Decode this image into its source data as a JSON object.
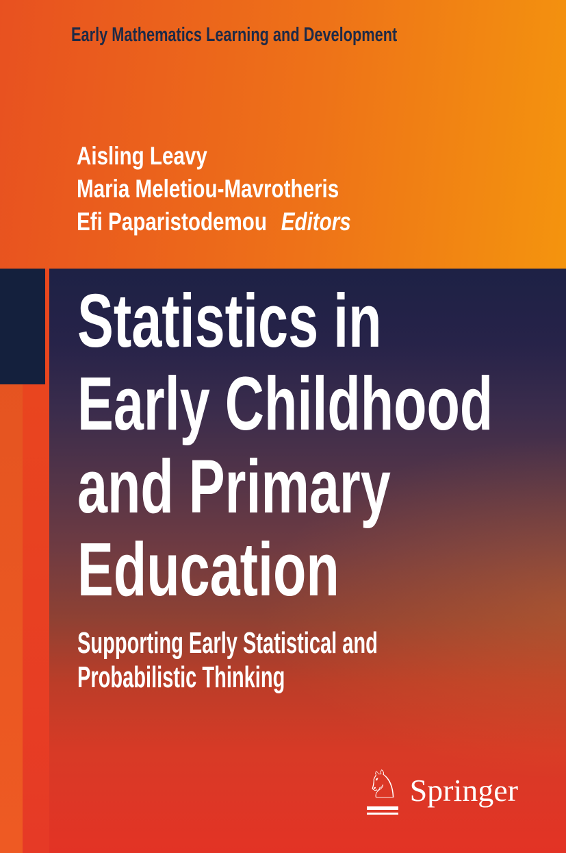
{
  "series": {
    "title": "Early Mathematics Learning and Development"
  },
  "editors": {
    "names": [
      "Aisling Leavy",
      "Maria Meletiou-Mavrotheris",
      "Efi Paparistodemou"
    ],
    "label": "Editors"
  },
  "book": {
    "title_lines": [
      "Statistics in",
      "Early Childhood",
      "and Primary",
      "Education"
    ],
    "subtitle_lines": [
      "Supporting Early Statistical and",
      "Probabilistic Thinking"
    ]
  },
  "publisher": {
    "name": "Springer",
    "logo_icon": "chess-knight",
    "knight_glyph": "♘"
  },
  "colors": {
    "bg_orange_left": "#e85120",
    "bg_orange_right": "#f4940e",
    "left_strip_orange": "#ee5a23",
    "red_strip": "#e8431d",
    "navy_square": "#14203d",
    "panel_top_navy": "#1d2145",
    "panel_bottom_red": "#e33325",
    "series_text_navy": "#1e2a47",
    "text_white": "#ffffff"
  }
}
